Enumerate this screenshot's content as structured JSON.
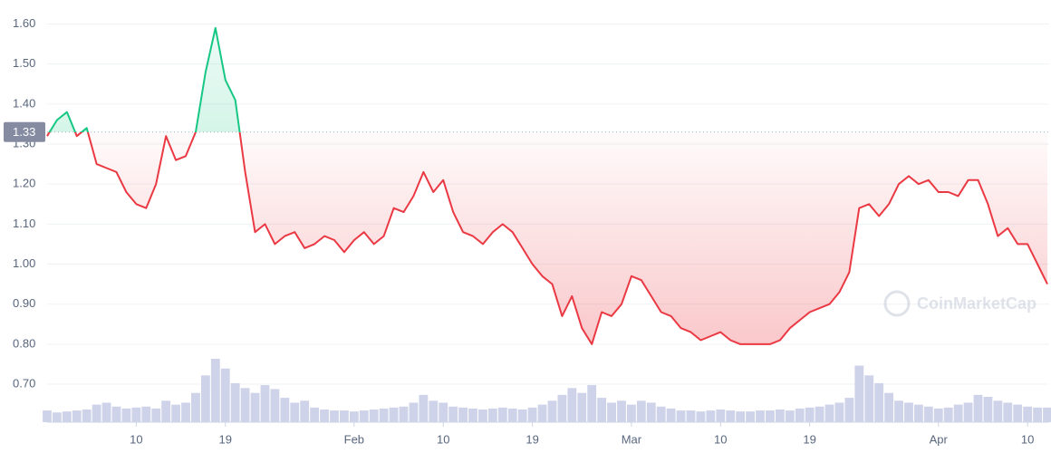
{
  "chart_data": {
    "type": "line",
    "categories": [
      null,
      null,
      null,
      null,
      null,
      null,
      null,
      null,
      null,
      "10",
      null,
      null,
      null,
      null,
      null,
      null,
      null,
      null,
      "19",
      null,
      null,
      null,
      null,
      null,
      null,
      null,
      null,
      null,
      null,
      null,
      null,
      "Feb",
      null,
      null,
      null,
      null,
      null,
      null,
      null,
      null,
      "10",
      null,
      null,
      null,
      null,
      null,
      null,
      null,
      null,
      "19",
      null,
      null,
      null,
      null,
      null,
      null,
      null,
      null,
      null,
      "Mar",
      null,
      null,
      null,
      null,
      null,
      null,
      null,
      null,
      "10",
      null,
      null,
      null,
      null,
      null,
      null,
      null,
      null,
      "19",
      null,
      null,
      null,
      null,
      null,
      null,
      null,
      null,
      null,
      null,
      null,
      null,
      "Apr",
      null,
      null,
      null,
      null,
      null,
      null,
      null,
      null,
      "10",
      null,
      null
    ],
    "values": [
      1.32,
      1.36,
      1.38,
      1.32,
      1.34,
      1.25,
      1.24,
      1.23,
      1.18,
      1.15,
      1.14,
      1.2,
      1.32,
      1.26,
      1.27,
      1.33,
      1.48,
      1.59,
      1.46,
      1.41,
      1.23,
      1.08,
      1.1,
      1.05,
      1.07,
      1.08,
      1.04,
      1.05,
      1.07,
      1.06,
      1.03,
      1.06,
      1.08,
      1.05,
      1.07,
      1.14,
      1.13,
      1.17,
      1.23,
      1.18,
      1.21,
      1.13,
      1.08,
      1.07,
      1.05,
      1.08,
      1.1,
      1.08,
      1.04,
      1.0,
      0.97,
      0.95,
      0.87,
      0.92,
      0.84,
      0.8,
      0.88,
      0.87,
      0.9,
      0.97,
      0.96,
      0.92,
      0.88,
      0.87,
      0.84,
      0.83,
      0.81,
      0.82,
      0.83,
      0.81,
      0.8,
      0.8,
      0.8,
      0.8,
      0.81,
      0.84,
      0.86,
      0.88,
      0.89,
      0.9,
      0.93,
      0.98,
      1.14,
      1.15,
      1.12,
      1.15,
      1.2,
      1.22,
      1.2,
      1.21,
      1.18,
      1.18,
      1.17,
      1.21,
      1.21,
      1.15,
      1.07,
      1.09,
      1.05,
      1.05,
      1.0,
      0.95
    ],
    "volume": [
      12,
      10,
      11,
      12,
      13,
      18,
      20,
      16,
      14,
      15,
      16,
      14,
      22,
      18,
      20,
      30,
      48,
      65,
      55,
      40,
      35,
      30,
      38,
      34,
      25,
      20,
      22,
      15,
      13,
      12,
      12,
      11,
      12,
      13,
      14,
      15,
      16,
      20,
      28,
      22,
      20,
      16,
      15,
      14,
      13,
      14,
      15,
      14,
      13,
      15,
      18,
      22,
      28,
      35,
      30,
      38,
      25,
      20,
      22,
      18,
      22,
      20,
      16,
      14,
      12,
      12,
      11,
      12,
      13,
      12,
      11,
      11,
      12,
      12,
      13,
      12,
      14,
      15,
      16,
      18,
      20,
      25,
      58,
      48,
      40,
      30,
      22,
      20,
      18,
      16,
      14,
      15,
      18,
      20,
      28,
      26,
      22,
      20,
      18,
      16,
      15,
      15
    ],
    "ylim": [
      0.605,
      1.66
    ],
    "yticks": [
      {
        "value": 0.7,
        "label": "0.70"
      },
      {
        "value": 0.8,
        "label": "0.80"
      },
      {
        "value": 0.9,
        "label": "0.90"
      },
      {
        "value": 1.0,
        "label": "1.00"
      },
      {
        "value": 1.1,
        "label": "1.10"
      },
      {
        "value": 1.2,
        "label": "1.20"
      },
      {
        "value": 1.3,
        "label": "1.30"
      },
      {
        "value": 1.4,
        "label": "1.40"
      },
      {
        "value": 1.5,
        "label": "1.50"
      },
      {
        "value": 1.6,
        "label": "1.60"
      }
    ],
    "baseline": 1.33,
    "grid": true,
    "color_up": "#16c784",
    "color_down": "#ea3943",
    "volume_color": "#cfd3ea",
    "watermark": "CoinMarketCap"
  }
}
